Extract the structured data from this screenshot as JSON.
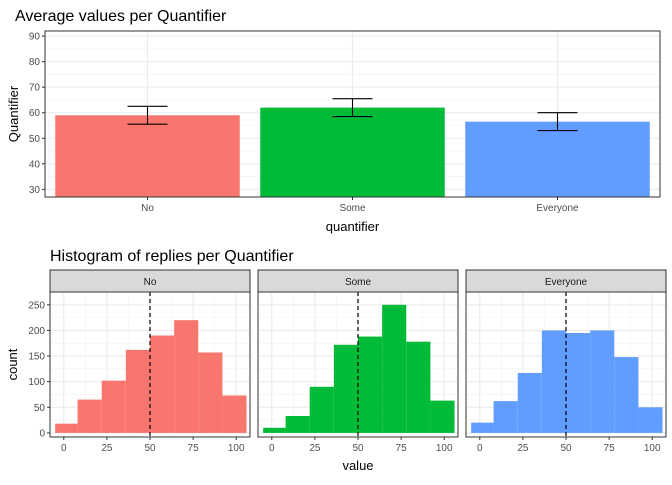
{
  "chart_data": [
    {
      "type": "bar",
      "title": "Average values per Quantifier",
      "xlabel": "quantifier",
      "ylabel": "Quantifier",
      "categories": [
        "No",
        "Some",
        "Everyone"
      ],
      "values": [
        59,
        62,
        56.5
      ],
      "error_low": [
        55.5,
        58.5,
        53
      ],
      "error_high": [
        62.5,
        65.5,
        60
      ],
      "colors": [
        "#F8766D",
        "#00BA38",
        "#619CFF"
      ],
      "ylim": [
        27,
        92
      ],
      "yticks": [
        30,
        40,
        50,
        60,
        70,
        80,
        90
      ],
      "grid": true
    },
    {
      "type": "bar",
      "subtype": "histogram-facets",
      "title": "Histogram of replies per Quantifier",
      "xlabel": "value",
      "ylabel": "count",
      "xlim": [
        -8,
        108
      ],
      "ylim": [
        -8,
        275
      ],
      "xticks": [
        0,
        25,
        50,
        75,
        100
      ],
      "yticks": [
        0,
        50,
        100,
        150,
        200,
        250
      ],
      "bin_edges": [
        -5,
        8,
        22,
        36,
        50,
        64,
        78,
        92,
        106
      ],
      "reference_line_x": 50,
      "grid": true,
      "facets": [
        {
          "name": "No",
          "color": "#F8766D",
          "counts": [
            18,
            65,
            102,
            162,
            190,
            220,
            157,
            73
          ]
        },
        {
          "name": "Some",
          "color": "#00BA38",
          "counts": [
            10,
            33,
            90,
            172,
            188,
            250,
            178,
            63
          ]
        },
        {
          "name": "Everyone",
          "color": "#619CFF",
          "counts": [
            20,
            62,
            117,
            200,
            195,
            200,
            148,
            50
          ]
        }
      ]
    }
  ]
}
